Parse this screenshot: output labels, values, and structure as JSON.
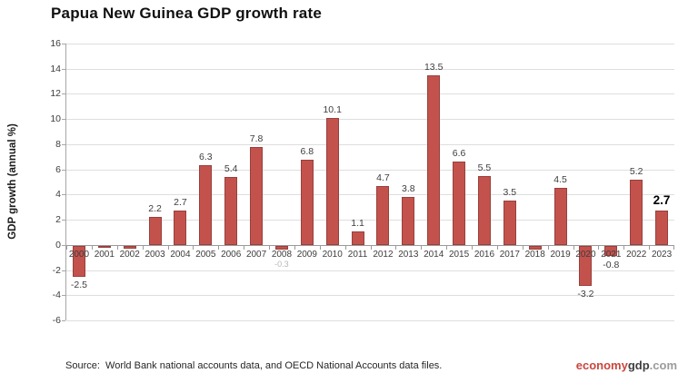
{
  "title": "Papua New Guinea GDP growth rate",
  "chart_data": {
    "type": "bar",
    "title": "Papua New Guinea GDP growth rate",
    "xlabel": "",
    "ylabel": "GDP growth (annual %)",
    "ylim": [
      -6,
      16
    ],
    "ytick_step": 2,
    "grid": true,
    "legend": false,
    "bar_color": "#c3524d",
    "bar_border_color": "#97403c",
    "categories": [
      "2000",
      "2001",
      "2002",
      "2003",
      "2004",
      "2005",
      "2006",
      "2007",
      "2008",
      "2009",
      "2010",
      "2011",
      "2012",
      "2013",
      "2014",
      "2015",
      "2016",
      "2017",
      "2018",
      "2019",
      "2020",
      "2021",
      "2022",
      "2023"
    ],
    "values": [
      -2.5,
      -0.1,
      -0.2,
      2.2,
      2.7,
      6.3,
      5.4,
      7.8,
      -0.3,
      6.8,
      10.1,
      1.1,
      4.7,
      3.8,
      13.5,
      6.6,
      5.5,
      3.5,
      -0.3,
      4.5,
      -3.2,
      -0.8,
      5.2,
      2.7
    ],
    "labels": [
      "-2.5",
      "",
      "",
      "2.2",
      "2.7",
      "6.3",
      "5.4",
      "7.8",
      "-0.3",
      "6.8",
      "10.1",
      "1.1",
      "4.7",
      "3.8",
      "13.5",
      "6.6",
      "5.5",
      "3.5",
      "",
      "4.5",
      "-3.2",
      "-0.8",
      "5.2",
      "2.7"
    ],
    "label_styles": {
      "2008": "faint",
      "2023": "emphasis"
    }
  },
  "footer": {
    "source": "Source:  World Bank national accounts data, and OECD National Accounts data files.",
    "logo": {
      "part1": "economy",
      "part2": "gdp",
      "part3": ".com",
      "part1_color": "#c9463e",
      "part2_color": "#3f3f3f",
      "part3_color": "#9b9b9b"
    }
  }
}
